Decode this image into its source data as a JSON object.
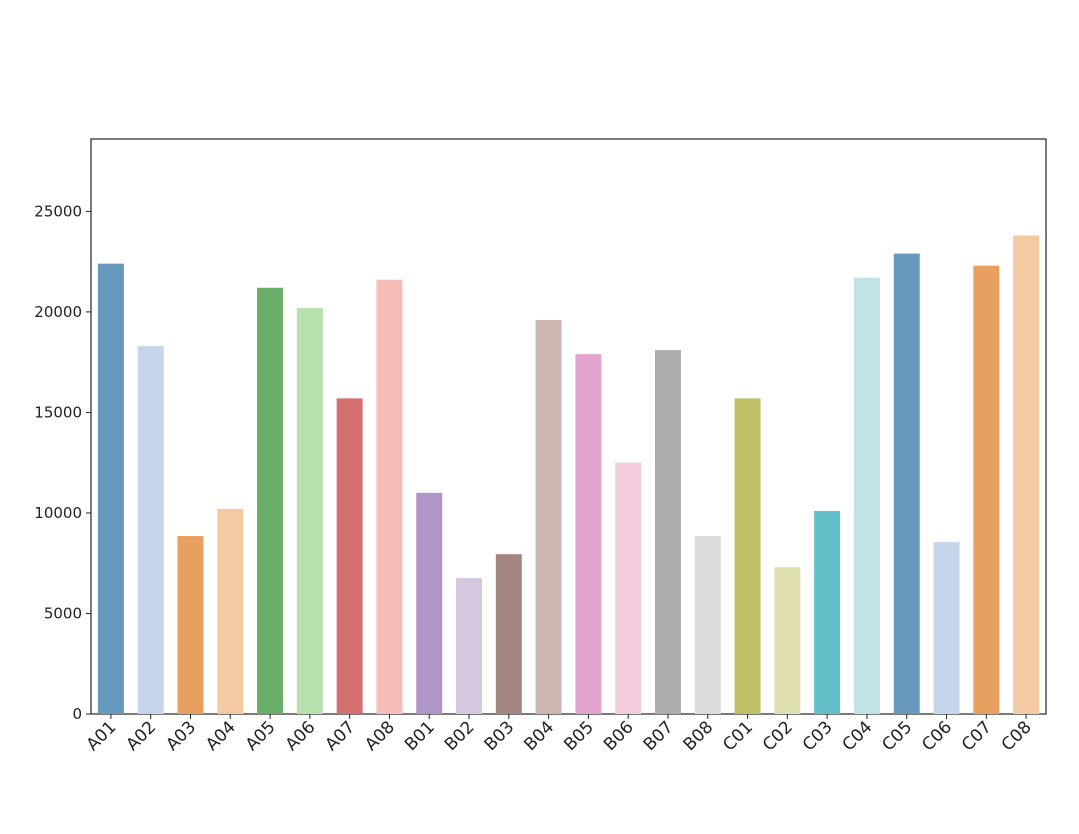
{
  "chart_data": {
    "type": "bar",
    "categories": [
      "A01",
      "A02",
      "A03",
      "A04",
      "A05",
      "A06",
      "A07",
      "A08",
      "B01",
      "B02",
      "B03",
      "B04",
      "B05",
      "B06",
      "B07",
      "B08",
      "C01",
      "C02",
      "C03",
      "C04",
      "C05",
      "C06",
      "C07",
      "C08"
    ],
    "values": [
      22400,
      18300,
      8850,
      10200,
      21200,
      20200,
      15700,
      21600,
      11000,
      6760,
      7950,
      19600,
      17900,
      12500,
      18100,
      8850,
      15700,
      7300,
      10100,
      21700,
      22900,
      8550,
      22300,
      23800
    ],
    "colors": [
      "#6699bb",
      "#c5d6ea",
      "#e8a060",
      "#f3caa2",
      "#6aae6a",
      "#b8e0ae",
      "#d47070",
      "#f5bcb8",
      "#b096c8",
      "#d5c8de",
      "#a5857f",
      "#cdb6b0",
      "#e2a4cf",
      "#f2ccde",
      "#acacac",
      "#dddddd",
      "#c0c068",
      "#dfdfb0",
      "#63bfc8",
      "#c3e2e8",
      "#6699bb",
      "#c5d6ea",
      "#e8a060",
      "#f3caa2"
    ],
    "ylim": [
      0,
      28600
    ],
    "yticks": [
      0,
      5000,
      10000,
      15000,
      20000,
      25000
    ],
    "grid": false
  }
}
